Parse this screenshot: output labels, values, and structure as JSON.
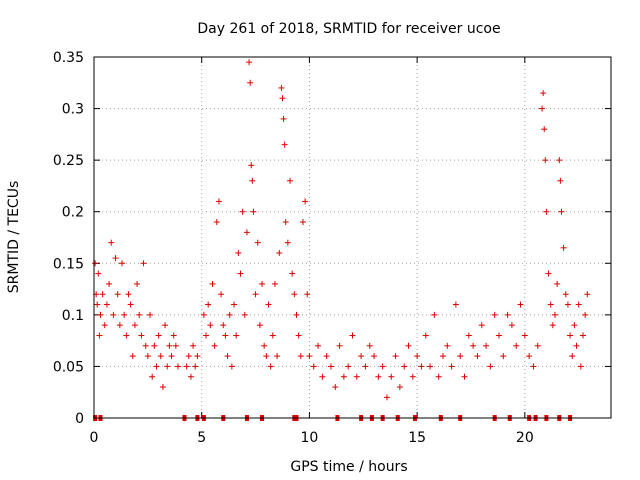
{
  "chart_data": {
    "type": "scatter",
    "title": "Day 261 of 2018, SRMTID for receiver ucoe",
    "xlabel": "GPS time / hours",
    "ylabel": "SRMTID / TECUs",
    "xlim": [
      0,
      24
    ],
    "ylim": [
      0,
      0.35
    ],
    "x_ticks": [
      0,
      5,
      10,
      15,
      20
    ],
    "x_tick_labels": [
      "0",
      "5",
      "10",
      "15",
      "20"
    ],
    "y_ticks": [
      0,
      0.05,
      0.1,
      0.15,
      0.2,
      0.25,
      0.3,
      0.35
    ],
    "y_tick_labels": [
      "0",
      "0.05",
      "0.1",
      "0.15",
      "0.2",
      "0.25",
      "0.3",
      "0.35"
    ],
    "grid": true,
    "marker": "+",
    "color": "#dd0000",
    "zero_markers": [
      0.05,
      0.3,
      4.2,
      4.8,
      5.1,
      6.0,
      7.1,
      7.8,
      9.3,
      9.4,
      11.3,
      12.4,
      12.9,
      13.4,
      14.1,
      14.9,
      16.1,
      17.0,
      18.6,
      19.3,
      20.2,
      20.5,
      21.0,
      21.6,
      22.1
    ],
    "series": [
      {
        "name": "SRMTID",
        "points": [
          [
            0.05,
            0.15
          ],
          [
            0.1,
            0.12
          ],
          [
            0.15,
            0.11
          ],
          [
            0.2,
            0.14
          ],
          [
            0.25,
            0.08
          ],
          [
            0.3,
            0.1
          ],
          [
            0.4,
            0.12
          ],
          [
            0.5,
            0.09
          ],
          [
            0.6,
            0.11
          ],
          [
            0.7,
            0.13
          ],
          [
            0.8,
            0.17
          ],
          [
            0.9,
            0.1
          ],
          [
            1.0,
            0.155
          ],
          [
            1.1,
            0.12
          ],
          [
            1.2,
            0.09
          ],
          [
            1.3,
            0.15
          ],
          [
            1.4,
            0.1
          ],
          [
            1.5,
            0.08
          ],
          [
            1.6,
            0.12
          ],
          [
            1.7,
            0.11
          ],
          [
            1.8,
            0.06
          ],
          [
            1.9,
            0.09
          ],
          [
            2.0,
            0.13
          ],
          [
            2.1,
            0.1
          ],
          [
            2.2,
            0.08
          ],
          [
            2.3,
            0.15
          ],
          [
            2.4,
            0.07
          ],
          [
            2.5,
            0.06
          ],
          [
            2.6,
            0.1
          ],
          [
            2.7,
            0.04
          ],
          [
            2.8,
            0.07
          ],
          [
            2.9,
            0.05
          ],
          [
            3.0,
            0.08
          ],
          [
            3.1,
            0.06
          ],
          [
            3.2,
            0.03
          ],
          [
            3.3,
            0.09
          ],
          [
            3.4,
            0.05
          ],
          [
            3.5,
            0.07
          ],
          [
            3.6,
            0.06
          ],
          [
            3.7,
            0.08
          ],
          [
            3.8,
            0.07
          ],
          [
            3.9,
            0.05
          ],
          [
            4.3,
            0.05
          ],
          [
            4.4,
            0.06
          ],
          [
            4.5,
            0.04
          ],
          [
            4.6,
            0.07
          ],
          [
            4.7,
            0.05
          ],
          [
            4.8,
            0.06
          ],
          [
            5.1,
            0.1
          ],
          [
            5.2,
            0.08
          ],
          [
            5.3,
            0.11
          ],
          [
            5.4,
            0.09
          ],
          [
            5.5,
            0.13
          ],
          [
            5.6,
            0.07
          ],
          [
            5.7,
            0.19
          ],
          [
            5.8,
            0.21
          ],
          [
            5.9,
            0.12
          ],
          [
            6.0,
            0.09
          ],
          [
            6.1,
            0.08
          ],
          [
            6.2,
            0.06
          ],
          [
            6.3,
            0.1
          ],
          [
            6.4,
            0.05
          ],
          [
            6.5,
            0.11
          ],
          [
            6.6,
            0.08
          ],
          [
            6.7,
            0.16
          ],
          [
            6.8,
            0.14
          ],
          [
            6.9,
            0.2
          ],
          [
            7.0,
            0.1
          ],
          [
            7.1,
            0.18
          ],
          [
            7.2,
            0.345
          ],
          [
            7.25,
            0.325
          ],
          [
            7.3,
            0.245
          ],
          [
            7.35,
            0.23
          ],
          [
            7.4,
            0.2
          ],
          [
            7.5,
            0.12
          ],
          [
            7.6,
            0.17
          ],
          [
            7.7,
            0.09
          ],
          [
            7.8,
            0.13
          ],
          [
            7.9,
            0.07
          ],
          [
            8.0,
            0.06
          ],
          [
            8.1,
            0.11
          ],
          [
            8.2,
            0.05
          ],
          [
            8.3,
            0.08
          ],
          [
            8.4,
            0.13
          ],
          [
            8.5,
            0.06
          ],
          [
            8.6,
            0.16
          ],
          [
            8.7,
            0.32
          ],
          [
            8.75,
            0.31
          ],
          [
            8.8,
            0.29
          ],
          [
            8.85,
            0.265
          ],
          [
            8.9,
            0.19
          ],
          [
            9.0,
            0.17
          ],
          [
            9.1,
            0.23
          ],
          [
            9.2,
            0.14
          ],
          [
            9.3,
            0.12
          ],
          [
            9.4,
            0.1
          ],
          [
            9.5,
            0.08
          ],
          [
            9.6,
            0.06
          ],
          [
            9.7,
            0.19
          ],
          [
            9.8,
            0.21
          ],
          [
            9.9,
            0.12
          ],
          [
            10.0,
            0.06
          ],
          [
            10.2,
            0.05
          ],
          [
            10.4,
            0.07
          ],
          [
            10.6,
            0.04
          ],
          [
            10.8,
            0.06
          ],
          [
            11.0,
            0.05
          ],
          [
            11.2,
            0.03
          ],
          [
            11.4,
            0.07
          ],
          [
            11.6,
            0.04
          ],
          [
            11.8,
            0.05
          ],
          [
            12.0,
            0.08
          ],
          [
            12.2,
            0.04
          ],
          [
            12.4,
            0.06
          ],
          [
            12.6,
            0.05
          ],
          [
            12.8,
            0.07
          ],
          [
            13.0,
            0.06
          ],
          [
            13.2,
            0.04
          ],
          [
            13.4,
            0.05
          ],
          [
            13.6,
            0.02
          ],
          [
            13.8,
            0.04
          ],
          [
            14.0,
            0.06
          ],
          [
            14.2,
            0.03
          ],
          [
            14.4,
            0.05
          ],
          [
            14.6,
            0.07
          ],
          [
            14.8,
            0.04
          ],
          [
            15.0,
            0.06
          ],
          [
            15.2,
            0.05
          ],
          [
            15.4,
            0.08
          ],
          [
            15.6,
            0.05
          ],
          [
            15.8,
            0.1
          ],
          [
            16.0,
            0.04
          ],
          [
            16.2,
            0.06
          ],
          [
            16.4,
            0.07
          ],
          [
            16.6,
            0.05
          ],
          [
            16.8,
            0.11
          ],
          [
            17.0,
            0.06
          ],
          [
            17.2,
            0.04
          ],
          [
            17.4,
            0.08
          ],
          [
            17.6,
            0.07
          ],
          [
            17.8,
            0.06
          ],
          [
            18.0,
            0.09
          ],
          [
            18.2,
            0.07
          ],
          [
            18.4,
            0.05
          ],
          [
            18.6,
            0.1
          ],
          [
            18.8,
            0.08
          ],
          [
            19.0,
            0.06
          ],
          [
            19.2,
            0.1
          ],
          [
            19.4,
            0.09
          ],
          [
            19.6,
            0.07
          ],
          [
            19.8,
            0.11
          ],
          [
            20.0,
            0.08
          ],
          [
            20.2,
            0.06
          ],
          [
            20.4,
            0.05
          ],
          [
            20.6,
            0.07
          ],
          [
            20.8,
            0.3
          ],
          [
            20.85,
            0.315
          ],
          [
            20.9,
            0.28
          ],
          [
            20.95,
            0.25
          ],
          [
            21.0,
            0.2
          ],
          [
            21.1,
            0.14
          ],
          [
            21.2,
            0.11
          ],
          [
            21.3,
            0.09
          ],
          [
            21.4,
            0.1
          ],
          [
            21.5,
            0.13
          ],
          [
            21.6,
            0.25
          ],
          [
            21.65,
            0.23
          ],
          [
            21.7,
            0.2
          ],
          [
            21.8,
            0.165
          ],
          [
            21.9,
            0.12
          ],
          [
            22.0,
            0.11
          ],
          [
            22.1,
            0.08
          ],
          [
            22.2,
            0.06
          ],
          [
            22.3,
            0.09
          ],
          [
            22.4,
            0.07
          ],
          [
            22.5,
            0.11
          ],
          [
            22.6,
            0.05
          ],
          [
            22.7,
            0.08
          ],
          [
            22.8,
            0.1
          ],
          [
            22.9,
            0.12
          ]
        ]
      }
    ]
  }
}
